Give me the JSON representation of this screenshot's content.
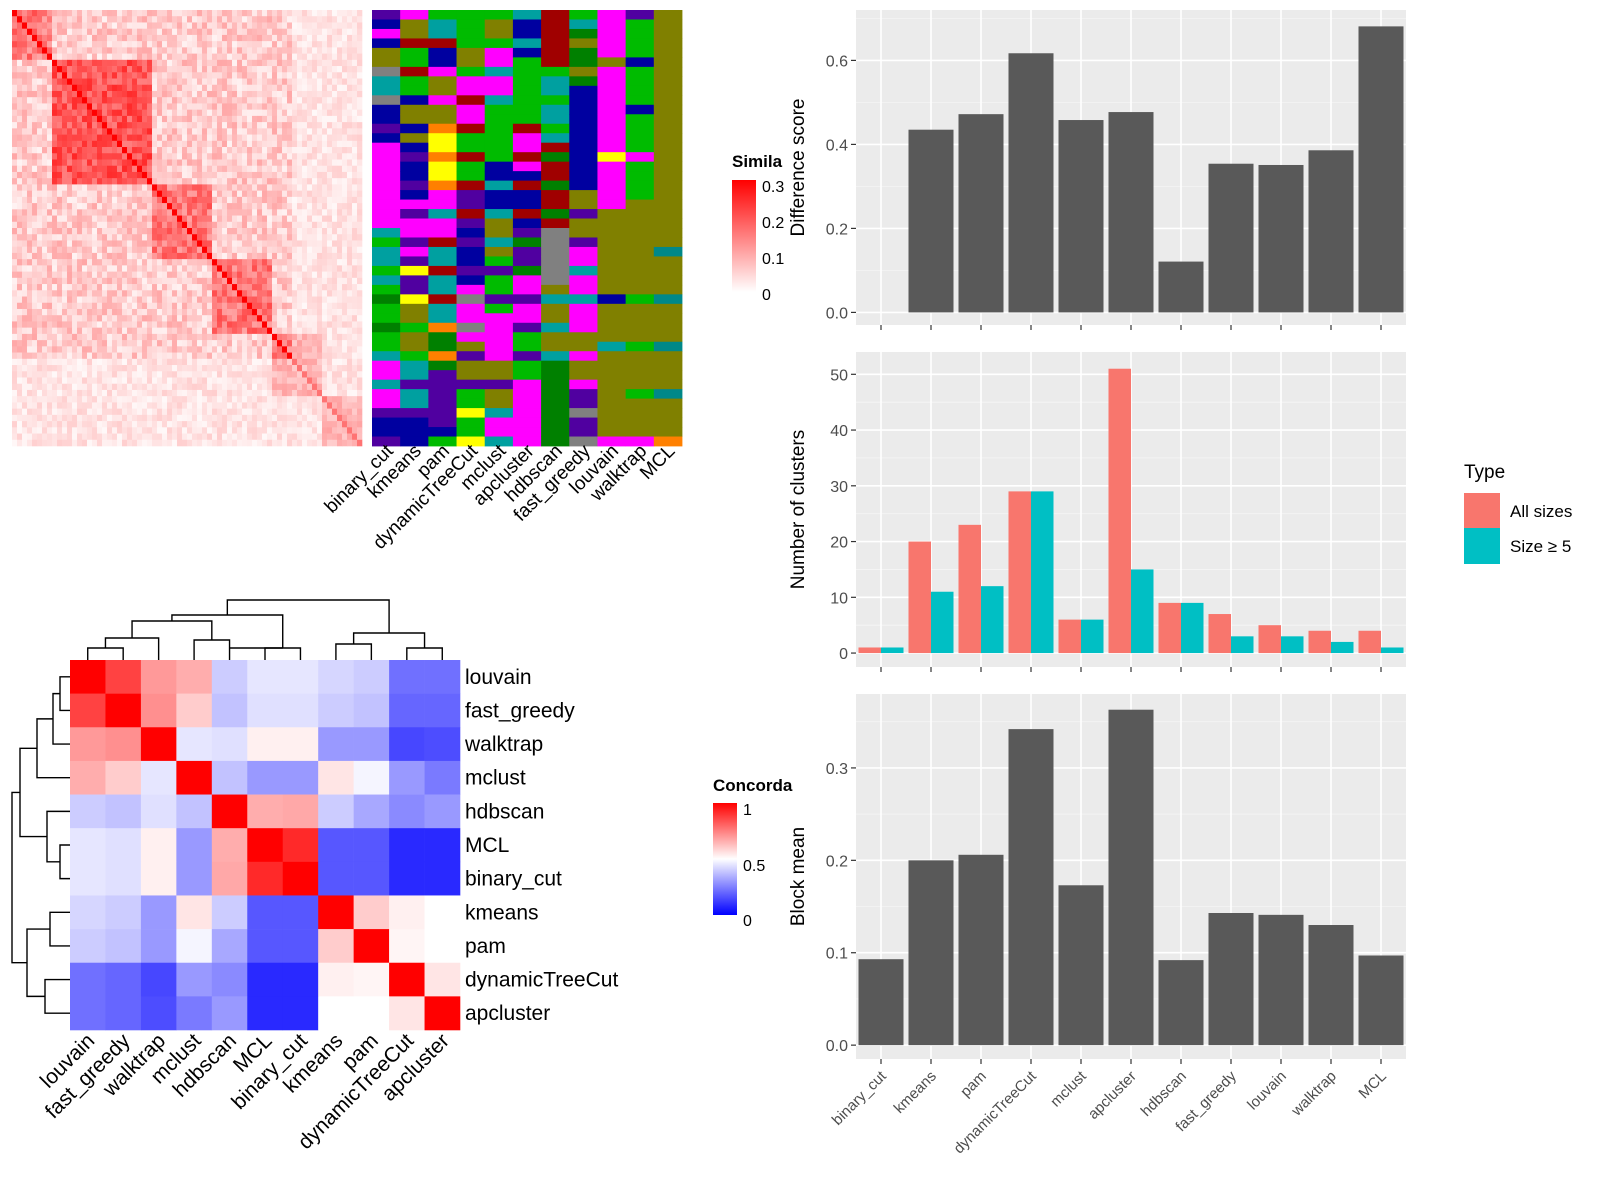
{
  "similarity_legend": {
    "title": "Simila",
    "ticks": [
      "0.3",
      "0.2",
      "0.1",
      "0"
    ]
  },
  "methods_top": [
    "binary_cut",
    "kmeans",
    "pam",
    "dynamicTreeCut",
    "mclust",
    "apcluster",
    "hdbscan",
    "fast_greedy",
    "louvain",
    "walktrap",
    "MCL"
  ],
  "concordance_legend": {
    "title": "Concorda",
    "ticks": [
      "1",
      "0.5",
      "0"
    ]
  },
  "colors": {
    "panel_bg": "#ebebeb",
    "bar": "#595959",
    "all_sizes": "#f8766d",
    "size_ge5": "#00bfc4",
    "hot": "#ff0000",
    "cold": "#0000ff"
  },
  "chart_data": [
    {
      "type": "heatmap",
      "name": "concordance",
      "rows": [
        "louvain",
        "fast_greedy",
        "walktrap",
        "mclust",
        "hdbscan",
        "MCL",
        "binary_cut",
        "kmeans",
        "pam",
        "dynamicTreeCut",
        "apcluster"
      ],
      "columns": [
        "louvain",
        "fast_greedy",
        "walktrap",
        "mclust",
        "hdbscan",
        "MCL",
        "binary_cut",
        "kmeans",
        "pam",
        "dynamicTreeCut",
        "apcluster"
      ],
      "values": [
        [
          1.0,
          0.87,
          0.7,
          0.66,
          0.4,
          0.45,
          0.45,
          0.42,
          0.4,
          0.22,
          0.22
        ],
        [
          0.87,
          1.0,
          0.72,
          0.6,
          0.38,
          0.44,
          0.44,
          0.4,
          0.38,
          0.2,
          0.2
        ],
        [
          0.7,
          0.72,
          1.0,
          0.45,
          0.44,
          0.53,
          0.53,
          0.3,
          0.3,
          0.14,
          0.15
        ],
        [
          0.66,
          0.6,
          0.45,
          1.0,
          0.38,
          0.3,
          0.3,
          0.55,
          0.48,
          0.3,
          0.24
        ],
        [
          0.4,
          0.38,
          0.44,
          0.38,
          1.0,
          0.66,
          0.67,
          0.4,
          0.33,
          0.27,
          0.3
        ],
        [
          0.45,
          0.44,
          0.53,
          0.3,
          0.66,
          1.0,
          0.92,
          0.17,
          0.17,
          0.08,
          0.08
        ],
        [
          0.45,
          0.44,
          0.53,
          0.3,
          0.67,
          0.92,
          1.0,
          0.17,
          0.17,
          0.08,
          0.08
        ],
        [
          0.42,
          0.4,
          0.3,
          0.55,
          0.4,
          0.17,
          0.17,
          1.0,
          0.6,
          0.53,
          0.5
        ],
        [
          0.4,
          0.38,
          0.3,
          0.48,
          0.33,
          0.17,
          0.17,
          0.6,
          1.0,
          0.52,
          0.5
        ],
        [
          0.22,
          0.2,
          0.14,
          0.3,
          0.27,
          0.08,
          0.08,
          0.53,
          0.52,
          1.0,
          0.55
        ],
        [
          0.22,
          0.2,
          0.15,
          0.24,
          0.3,
          0.08,
          0.08,
          0.5,
          0.5,
          0.55,
          1.0
        ]
      ]
    },
    {
      "type": "bar",
      "name": "difference",
      "categories": [
        "binary_cut",
        "kmeans",
        "pam",
        "dynamicTreeCut",
        "mclust",
        "apcluster",
        "hdbscan",
        "fast_greedy",
        "louvain",
        "walktrap",
        "MCL"
      ],
      "values": [
        0.0,
        0.435,
        0.472,
        0.617,
        0.458,
        0.477,
        0.121,
        0.354,
        0.351,
        0.386,
        0.681
      ],
      "ylabel": "Difference score",
      "ylim": [
        -0.03,
        0.72
      ],
      "yticks": [
        0.0,
        0.2,
        0.4,
        0.6
      ],
      "ytick_labels": [
        "0.0",
        "0.2",
        "0.4",
        "0.6"
      ]
    },
    {
      "type": "bar",
      "name": "clusters",
      "categories": [
        "binary_cut",
        "kmeans",
        "pam",
        "dynamicTreeCut",
        "mclust",
        "apcluster",
        "hdbscan",
        "fast_greedy",
        "louvain",
        "walktrap",
        "MCL"
      ],
      "series": [
        {
          "name": "All sizes",
          "values": [
            1,
            20,
            23,
            29,
            6,
            51,
            9,
            7,
            5,
            4,
            4
          ]
        },
        {
          "name": "Size ≥ 5",
          "values": [
            1,
            11,
            12,
            29,
            6,
            15,
            9,
            3,
            3,
            2,
            1
          ]
        }
      ],
      "ylabel": "Number of clusters",
      "ylim": [
        -2.5,
        54
      ],
      "yticks": [
        0,
        10,
        20,
        30,
        40,
        50
      ],
      "ytick_labels": [
        "0",
        "10",
        "20",
        "30",
        "40",
        "50"
      ],
      "legend_title": "Type",
      "legend_position": "right"
    },
    {
      "type": "bar",
      "name": "blockmean",
      "categories": [
        "binary_cut",
        "kmeans",
        "pam",
        "dynamicTreeCut",
        "mclust",
        "apcluster",
        "hdbscan",
        "fast_greedy",
        "louvain",
        "walktrap",
        "MCL"
      ],
      "values": [
        0.093,
        0.2,
        0.206,
        0.342,
        0.173,
        0.363,
        0.092,
        0.143,
        0.141,
        0.13,
        0.097
      ],
      "ylabel": "Block mean",
      "ylim": [
        -0.015,
        0.38
      ],
      "yticks": [
        0.0,
        0.1,
        0.2,
        0.3
      ],
      "ytick_labels": [
        "0.0",
        "0.1",
        "0.2",
        "0.3"
      ]
    }
  ]
}
